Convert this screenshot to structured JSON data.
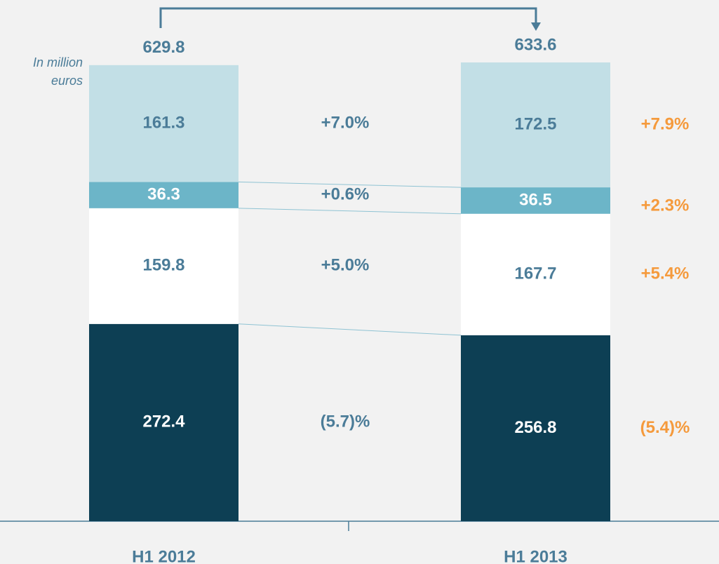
{
  "chart_data": {
    "type": "bar",
    "stacked": true,
    "annotation": "In million euros",
    "categories": [
      "H1 2012",
      "H1 2013"
    ],
    "totals": [
      629.8,
      633.6
    ],
    "series": [
      {
        "color": "#0d3f54",
        "label_color": "#ffffff",
        "values": [
          272.4,
          256.8
        ],
        "change": "(5.7)%",
        "change_right": "(5.4)%"
      },
      {
        "color": "#ffffff",
        "label_color": "#4b7c98",
        "values": [
          159.8,
          167.7
        ],
        "change": "+5.0%",
        "change_right": "+5.4%"
      },
      {
        "color": "#6cb5c8",
        "label_color": "#ffffff",
        "values": [
          36.3,
          36.5
        ],
        "change": "+0.6%",
        "change_right": "+2.3%"
      },
      {
        "color": "#c2dfe6",
        "label_color": "#4b7c98",
        "values": [
          161.3,
          172.5
        ],
        "change": "+7.0%",
        "change_right": "+7.9%"
      }
    ],
    "text_color": "#4b7c98",
    "accent_color": "#f59a3c"
  }
}
